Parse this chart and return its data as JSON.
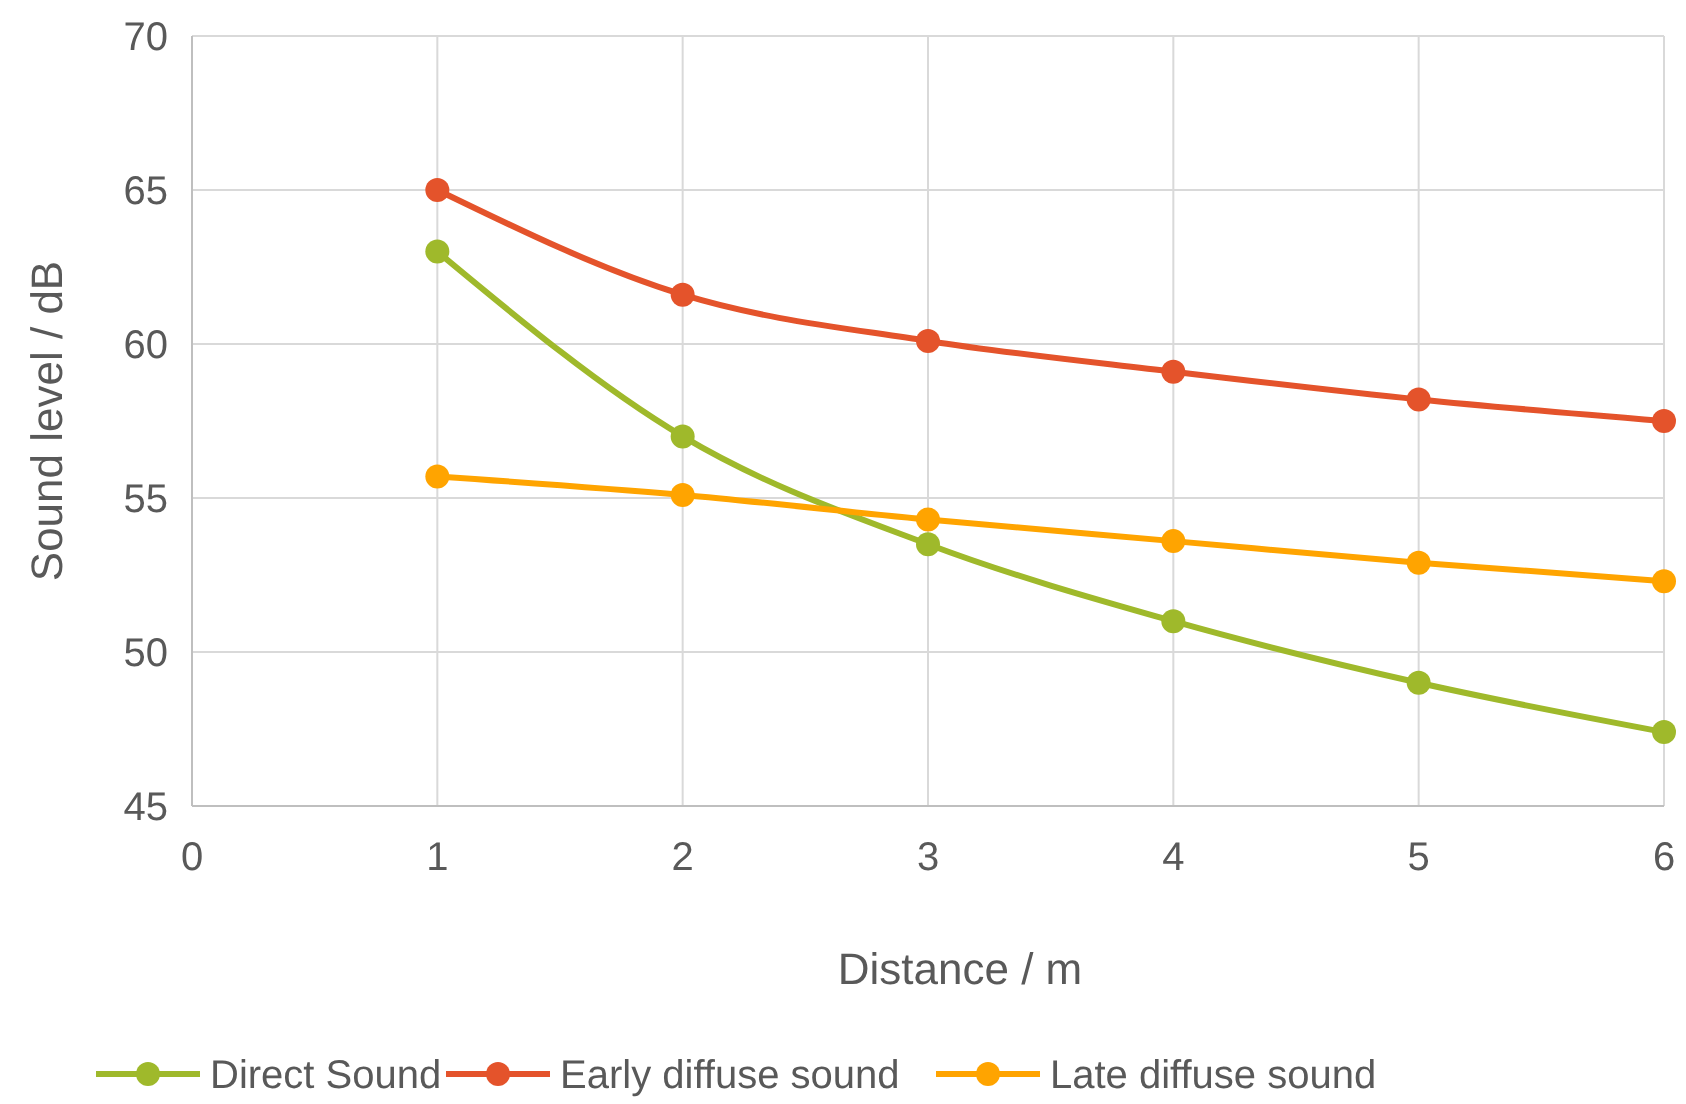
{
  "chart_data": {
    "type": "line",
    "xlabel": "Distance / m",
    "ylabel": "Sound level / dB",
    "xlim": [
      0,
      6
    ],
    "xticks": [
      0,
      1,
      2,
      3,
      4,
      5,
      6
    ],
    "ylim": [
      45,
      70
    ],
    "yticks": [
      45,
      50,
      55,
      60,
      65,
      70
    ],
    "grid": true,
    "legend": "bottom",
    "marker": "circle",
    "line_style": "solid",
    "series": [
      {
        "name": "Direct Sound",
        "color": "#9fb92b",
        "x": [
          1,
          2,
          3,
          4,
          5,
          6
        ],
        "values": [
          63.0,
          57.0,
          53.5,
          51.0,
          49.0,
          47.4
        ]
      },
      {
        "name": "Early diffuse sound",
        "color": "#e4532b",
        "x": [
          1,
          2,
          3,
          4,
          5,
          6
        ],
        "values": [
          65.0,
          61.6,
          60.1,
          59.1,
          58.2,
          57.5
        ]
      },
      {
        "name": "Late diffuse sound",
        "color": "#ffa400",
        "x": [
          1,
          2,
          3,
          4,
          5,
          6
        ],
        "values": [
          55.7,
          55.1,
          54.3,
          53.6,
          52.9,
          52.3
        ]
      }
    ]
  }
}
